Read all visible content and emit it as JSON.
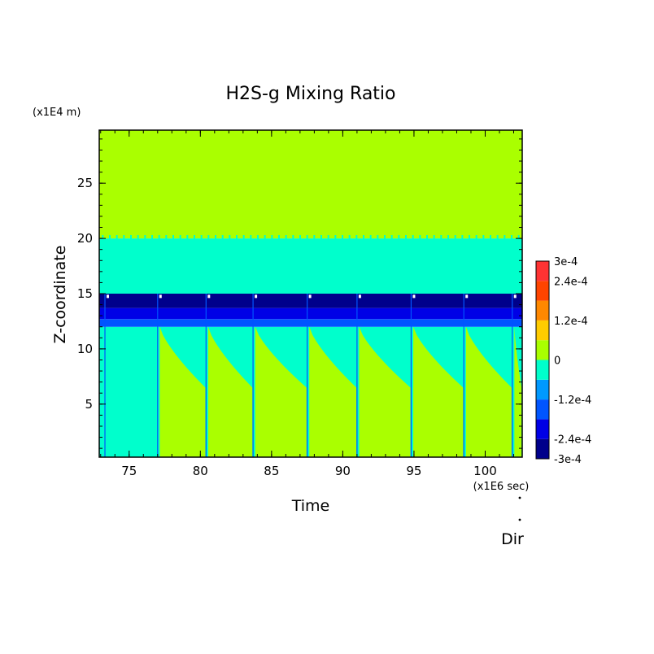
{
  "chart_data": {
    "type": "heatmap",
    "title": "H2S-g Mixing Ratio",
    "xlabel": "Time",
    "ylabel": "Z-coordinate",
    "x_unit": "(x1E6 sec)",
    "y_unit": "(x1E4 m)",
    "xlim": [
      72.9,
      102.6
    ],
    "ylim": [
      0.2,
      29.8
    ],
    "x_ticks": [
      75,
      80,
      85,
      90,
      95,
      100
    ],
    "y_ticks": [
      5,
      10,
      15,
      20,
      25
    ],
    "x_tick_labels": [
      "75",
      "80",
      "85",
      "90",
      "95",
      "100"
    ],
    "y_tick_labels": [
      "5",
      "10",
      "15",
      "20",
      "25"
    ],
    "colorbar": {
      "levels": [
        -0.0003,
        -0.00024,
        -0.00018,
        -0.00012,
        -6e-05,
        0,
        6e-05,
        0.00012,
        0.00018,
        0.00024,
        0.0003
      ],
      "colors": [
        "#00008b",
        "#0000e6",
        "#0055ff",
        "#0099ff",
        "#00ffcc",
        "#aaff00",
        "#ffcc00",
        "#ff8800",
        "#ff4400",
        "#ff3333"
      ],
      "tick_labels": [
        {
          "value": 0.0003,
          "label": "3e-4"
        },
        {
          "value": 0.00024,
          "label": "2.4e-4"
        },
        {
          "value": 0.00012,
          "label": "1.2e-4"
        },
        {
          "value": 0,
          "label": "0"
        },
        {
          "value": -0.00012,
          "label": "-1.2e-4"
        },
        {
          "value": -0.00024,
          "label": "-2.4e-4"
        },
        {
          "value": -0.0003,
          "label": "-3e-4"
        }
      ]
    },
    "regions": {
      "upper_zero_band": {
        "value": 0,
        "z_range": [
          20.0,
          29.8
        ]
      },
      "negative_band": {
        "value": -4e-05,
        "z_range": [
          15.0,
          20.0
        ]
      },
      "strong_negative_layer": {
        "value": -0.00027,
        "z_range": [
          13.7,
          15.0
        ]
      },
      "moderate_negative_layer": {
        "value": -0.00021,
        "z_range": [
          12.7,
          13.7
        ]
      },
      "light_negative_layer": {
        "value": -0.00015,
        "z_range": [
          12.0,
          12.7
        ]
      },
      "lower_background": {
        "value": -4e-05,
        "z_range": [
          0.2,
          12.0
        ]
      }
    },
    "pulse_times": [
      73.3,
      77.0,
      80.4,
      83.7,
      87.5,
      91.0,
      94.8,
      98.5,
      101.9
    ],
    "annotation": "Dir"
  }
}
